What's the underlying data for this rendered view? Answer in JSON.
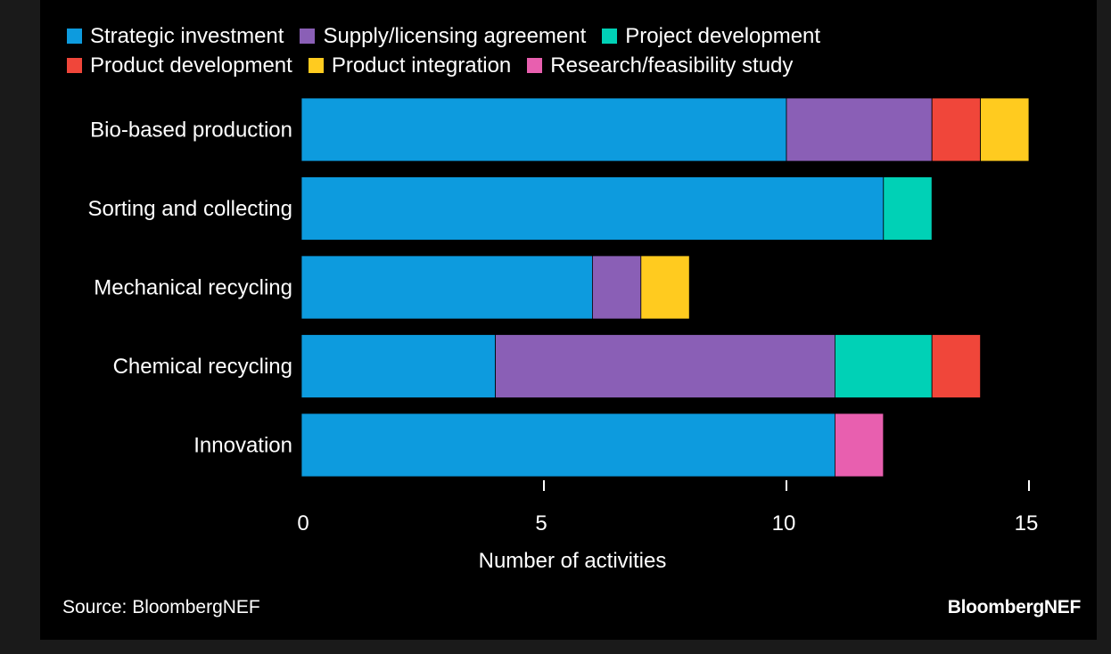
{
  "chart_data": {
    "type": "bar",
    "orientation": "horizontal",
    "stacked": true,
    "categories": [
      "Bio-based production",
      "Sorting and collecting",
      "Mechanical recycling",
      "Chemical recycling",
      "Innovation"
    ],
    "series": [
      {
        "name": "Strategic investment",
        "color": "#0d9bde",
        "values": [
          10,
          12,
          6,
          4,
          11
        ]
      },
      {
        "name": "Supply/licensing agreement",
        "color": "#8a5fb6",
        "values": [
          3,
          0,
          1,
          7,
          0
        ]
      },
      {
        "name": "Project development",
        "color": "#00d1b6",
        "values": [
          0,
          1,
          0,
          2,
          0
        ]
      },
      {
        "name": "Product development",
        "color": "#f0463a",
        "values": [
          1,
          0,
          0,
          1,
          0
        ]
      },
      {
        "name": "Product integration",
        "color": "#ffcb1f",
        "values": [
          1,
          0,
          1,
          0,
          0
        ]
      },
      {
        "name": "Research/feasibility study",
        "color": "#e85faf",
        "values": [
          0,
          0,
          0,
          0,
          1
        ]
      }
    ],
    "legend_rows": [
      [
        "Strategic investment",
        "Supply/licensing agreement",
        "Project development"
      ],
      [
        "Product development",
        "Product integration",
        "Research/feasibility study"
      ]
    ],
    "xlabel": "Number of activities",
    "xlim": [
      0,
      15
    ],
    "xticks": [
      0,
      5,
      10,
      15
    ],
    "legend_position": "top",
    "grid": false,
    "background": "#000000",
    "text_color": "#ffffff"
  },
  "source": "Source: BloombergNEF",
  "brand": "BloombergNEF"
}
